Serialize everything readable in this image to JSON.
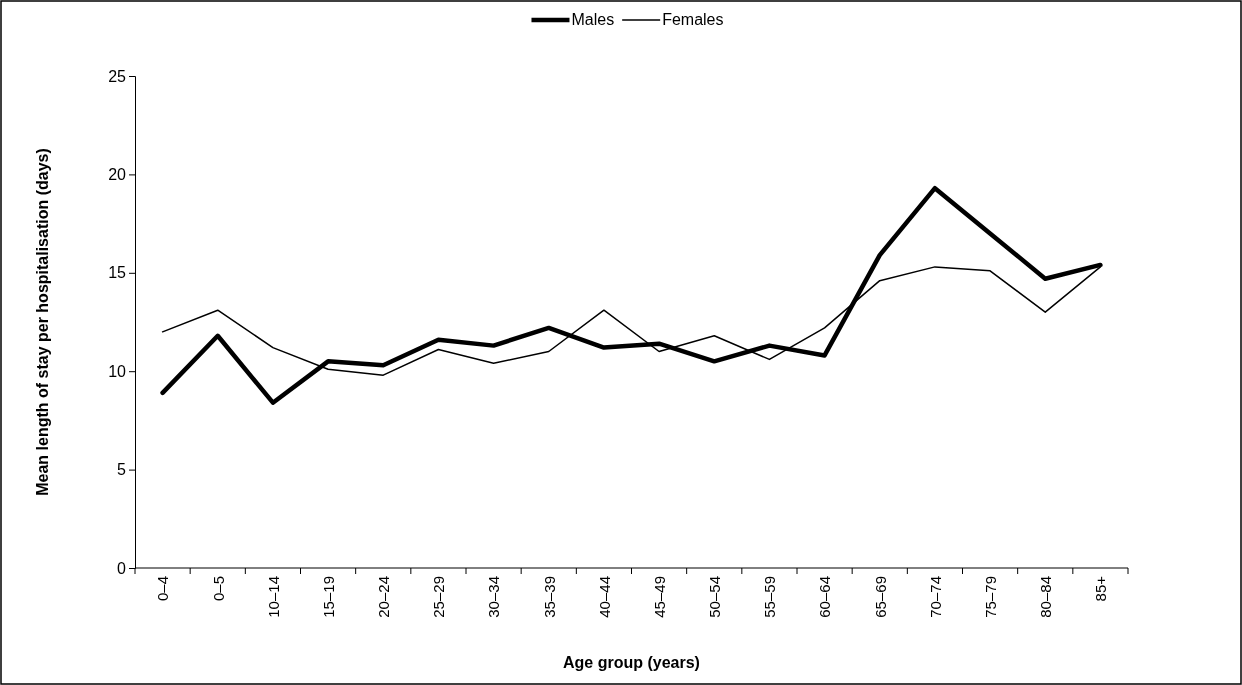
{
  "chart_data": {
    "type": "line",
    "xlabel": "Age group (years)",
    "ylabel": "Mean length of stay per hospitalisation (days)",
    "categories": [
      "0–4",
      "0–5",
      "10–14",
      "15–19",
      "20–24",
      "25–29",
      "30–34",
      "35–39",
      "40–44",
      "45–49",
      "50–54",
      "55–59",
      "60–64",
      "65–69",
      "70–74",
      "75–79",
      "80–84",
      "85+"
    ],
    "series": [
      {
        "name": "Males",
        "color": "#000000",
        "values": [
          8.9,
          11.8,
          8.4,
          10.5,
          10.3,
          11.6,
          11.3,
          12.2,
          11.2,
          11.4,
          10.5,
          11.3,
          10.8,
          15.9,
          19.3,
          17.0,
          14.7,
          15.4
        ]
      },
      {
        "name": "Females",
        "color": "#000000",
        "values": [
          12.0,
          13.1,
          11.2,
          10.1,
          9.8,
          11.1,
          10.4,
          11.0,
          13.1,
          11.0,
          11.8,
          10.6,
          12.2,
          14.6,
          15.3,
          15.1,
          13.0,
          15.3
        ]
      }
    ],
    "ylim": [
      0,
      25
    ],
    "yticks": [
      0,
      5,
      10,
      15,
      20,
      25
    ],
    "grid": false,
    "legend": "top",
    "marker": "none",
    "line_style": "solid"
  }
}
